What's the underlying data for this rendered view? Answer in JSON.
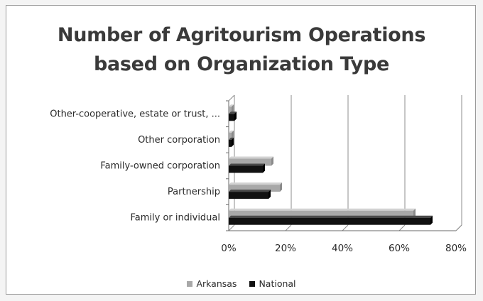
{
  "chart_data": {
    "type": "bar",
    "orientation": "horizontal",
    "title_lines": [
      "Number of Agritourism Operations",
      "based on Organization Type"
    ],
    "categories": [
      "Family or individual",
      "Partnership",
      "Family-owned corporation",
      "Other corporation",
      "Other-cooperative, estate or trust, ..."
    ],
    "series": [
      {
        "name": "Arkansas",
        "values": [
          65,
          18,
          15,
          1,
          1
        ],
        "color": "#a8a8a8"
      },
      {
        "name": "National",
        "values": [
          71,
          14,
          12,
          1,
          2
        ],
        "color": "#111111"
      }
    ],
    "xlim": [
      0,
      80
    ],
    "xticks": [
      "0%",
      "20%",
      "40%",
      "60%",
      "80%"
    ],
    "grid": true,
    "legend_position": "bottom"
  }
}
